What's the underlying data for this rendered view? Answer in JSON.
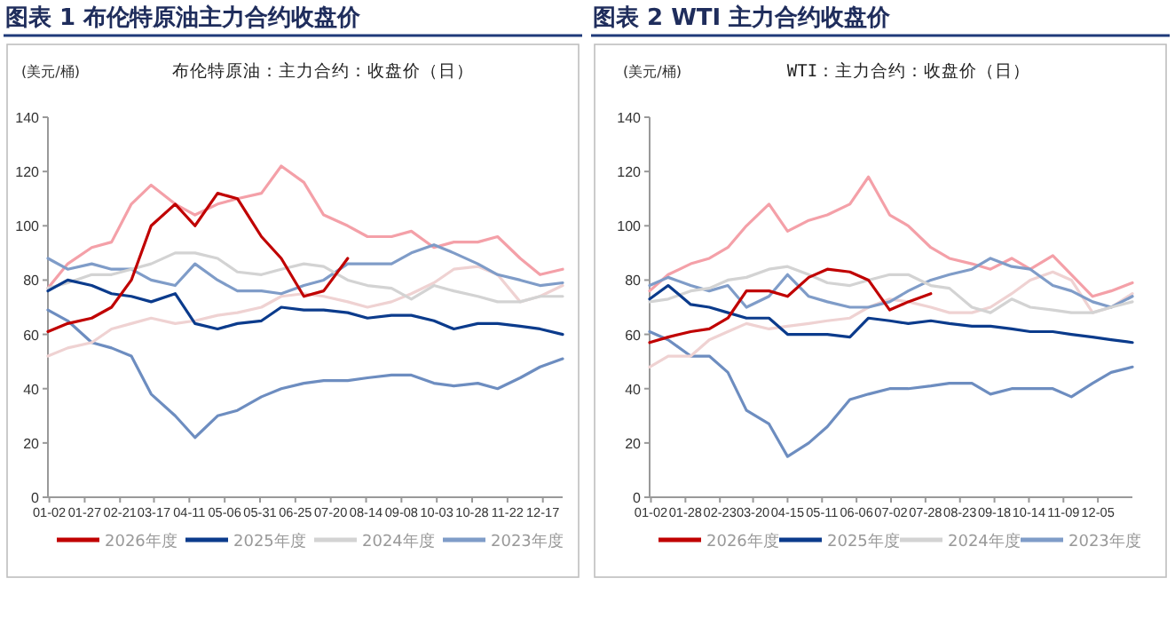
{
  "chart_data": [
    {
      "type": "line",
      "title": "图表 1 布伦特原油主力合约收盘价",
      "subtitle": "布伦特原油：主力合约：收盘价（日）",
      "ylabel": "(美元/桶)",
      "legend": "bottom",
      "line_style": "solid",
      "x": [
        "--01-01",
        "--01-15",
        "--02-01",
        "--02-15",
        "--03-01",
        "--03-15",
        "--04-01",
        "--04-15",
        "--05-01",
        "--05-15",
        "--06-01",
        "--06-15",
        "--07-01",
        "--07-15",
        "--08-01",
        "--08-15",
        "--09-01",
        "--09-15",
        "--10-01",
        "--10-15",
        "--11-01",
        "--11-15",
        "--12-01",
        "--12-15",
        "--12-31"
      ],
      "xlim": [
        "--01-01",
        "--12-31"
      ],
      "xticks": [
        {
          "value": "--01-02",
          "label": "01-02"
        },
        {
          "value": "--01-27",
          "label": "01-27"
        },
        {
          "value": "--02-21",
          "label": "02-21"
        },
        {
          "value": "--03-17",
          "label": "03-17"
        },
        {
          "value": "--04-11",
          "label": "04-11"
        },
        {
          "value": "--05-06",
          "label": "05-06"
        },
        {
          "value": "--05-31",
          "label": "05-31"
        },
        {
          "value": "--06-25",
          "label": "06-25"
        },
        {
          "value": "--07-20",
          "label": "07-20"
        },
        {
          "value": "--08-14",
          "label": "08-14"
        },
        {
          "value": "--09-08",
          "label": "09-08"
        },
        {
          "value": "--10-03",
          "label": "10-03"
        },
        {
          "value": "--10-28",
          "label": "10-28"
        },
        {
          "value": "--11-22",
          "label": "11-22"
        },
        {
          "value": "--12-17",
          "label": "12-17"
        }
      ],
      "ylim": [
        0,
        140
      ],
      "yticks": [
        0,
        20,
        40,
        60,
        80,
        100,
        120,
        140
      ],
      "series": [
        {
          "name": "2026年度",
          "color": "#c00000",
          "values": [
            61,
            64,
            66,
            70,
            80,
            100,
            108,
            100,
            112,
            110,
            96,
            88,
            74,
            76,
            88,
            null,
            null,
            null,
            null,
            null,
            null,
            null,
            null,
            null,
            null
          ]
        },
        {
          "name": "2025年度",
          "color": "#0b3b8c",
          "values": [
            76,
            80,
            78,
            75,
            74,
            72,
            75,
            64,
            62,
            64,
            65,
            70,
            69,
            69,
            68,
            66,
            67,
            67,
            65,
            62,
            64,
            64,
            63,
            62,
            60
          ]
        },
        {
          "name": "2024年度",
          "color": "#d3d3d3",
          "values": [
            77,
            79,
            82,
            82,
            84,
            86,
            90,
            90,
            88,
            83,
            82,
            84,
            86,
            85,
            80,
            78,
            77,
            73,
            78,
            76,
            74,
            72,
            72,
            74,
            74
          ]
        },
        {
          "name": "2023年度",
          "color": "#7f9cc8",
          "values": [
            88,
            84,
            86,
            84,
            84,
            80,
            78,
            86,
            80,
            76,
            76,
            75,
            78,
            80,
            86,
            86,
            86,
            90,
            93,
            90,
            86,
            82,
            80,
            78,
            79
          ]
        },
        {
          "color": "#f4a0a8",
          "values": [
            77,
            86,
            92,
            94,
            108,
            115,
            108,
            104,
            108,
            110,
            112,
            122,
            116,
            104,
            100,
            96,
            96,
            98,
            92,
            94,
            94,
            96,
            88,
            82,
            84
          ]
        },
        {
          "color": "#efd2d2",
          "values": [
            52,
            55,
            57,
            62,
            64,
            66,
            64,
            65,
            67,
            68,
            70,
            74,
            75,
            74,
            72,
            70,
            72,
            75,
            79,
            84,
            85,
            82,
            72,
            74,
            78
          ]
        },
        {
          "color": "#6d8dc0",
          "values": [
            69,
            65,
            57,
            55,
            52,
            38,
            30,
            22,
            30,
            32,
            37,
            40,
            42,
            43,
            43,
            44,
            45,
            45,
            42,
            41,
            42,
            40,
            44,
            48,
            51
          ]
        }
      ]
    },
    {
      "type": "line",
      "title": "图表 2 WTI 主力合约收盘价",
      "subtitle": "WTI：主力合约：收盘价（日）",
      "ylabel": "(美元/桶)",
      "legend": "bottom",
      "line_style": "solid",
      "x": [
        "--01-01",
        "--01-15",
        "--02-01",
        "--02-15",
        "--03-01",
        "--03-15",
        "--04-01",
        "--04-15",
        "--05-01",
        "--05-15",
        "--06-01",
        "--06-15",
        "--07-01",
        "--07-15",
        "--08-01",
        "--08-15",
        "--09-01",
        "--09-15",
        "--10-01",
        "--10-15",
        "--11-01",
        "--11-15",
        "--12-01",
        "--12-15",
        "--12-31"
      ],
      "xlim": [
        "--01-01",
        "--12-31"
      ],
      "xticks": [
        {
          "value": "--01-02",
          "label": "01-02"
        },
        {
          "value": "--01-28",
          "label": "01-28"
        },
        {
          "value": "--02-23",
          "label": "02-23"
        },
        {
          "value": "--03-20",
          "label": "03-20"
        },
        {
          "value": "--04-15",
          "label": "04-15"
        },
        {
          "value": "--05-11",
          "label": "05-11"
        },
        {
          "value": "--06-06",
          "label": "06-06"
        },
        {
          "value": "--07-02",
          "label": "07-02"
        },
        {
          "value": "--07-28",
          "label": "07-28"
        },
        {
          "value": "--08-23",
          "label": "08-23"
        },
        {
          "value": "--09-18",
          "label": "09-18"
        },
        {
          "value": "--10-14",
          "label": "10-14"
        },
        {
          "value": "--11-09",
          "label": "11-09"
        },
        {
          "value": "--12-05",
          "label": "12-05"
        }
      ],
      "ylim": [
        0,
        140
      ],
      "yticks": [
        0,
        20,
        40,
        60,
        80,
        100,
        120,
        140
      ],
      "series": [
        {
          "name": "2026年度",
          "color": "#c00000",
          "values": [
            57,
            59,
            61,
            62,
            66,
            76,
            76,
            74,
            81,
            84,
            83,
            80,
            69,
            72,
            75,
            null,
            null,
            null,
            null,
            null,
            null,
            null,
            null,
            null,
            null
          ]
        },
        {
          "name": "2025年度",
          "color": "#0b3b8c",
          "values": [
            73,
            78,
            71,
            70,
            68,
            66,
            66,
            60,
            60,
            60,
            59,
            66,
            65,
            64,
            65,
            64,
            63,
            63,
            62,
            61,
            61,
            60,
            59,
            58,
            57
          ]
        },
        {
          "name": "2024年度",
          "color": "#d3d3d3",
          "values": [
            72,
            73,
            76,
            77,
            80,
            81,
            84,
            85,
            82,
            79,
            78,
            80,
            82,
            82,
            78,
            77,
            70,
            68,
            73,
            70,
            69,
            68,
            68,
            70,
            72
          ]
        },
        {
          "name": "2023年度",
          "color": "#7f9cc8",
          "values": [
            78,
            81,
            78,
            76,
            78,
            70,
            74,
            82,
            74,
            72,
            70,
            70,
            72,
            76,
            80,
            82,
            84,
            88,
            85,
            84,
            78,
            76,
            72,
            70,
            74
          ]
        },
        {
          "color": "#f4a0a8",
          "values": [
            76,
            82,
            86,
            88,
            92,
            100,
            108,
            98,
            102,
            104,
            108,
            118,
            104,
            100,
            92,
            88,
            86,
            84,
            88,
            84,
            89,
            82,
            74,
            76,
            79
          ]
        },
        {
          "color": "#efd2d2",
          "values": [
            48,
            52,
            52,
            58,
            61,
            64,
            62,
            63,
            64,
            65,
            66,
            70,
            73,
            72,
            70,
            68,
            68,
            70,
            75,
            80,
            83,
            80,
            68,
            70,
            75
          ]
        },
        {
          "color": "#6d8dc0",
          "values": [
            61,
            58,
            52,
            52,
            46,
            32,
            27,
            15,
            20,
            26,
            36,
            38,
            40,
            40,
            41,
            42,
            42,
            38,
            40,
            40,
            40,
            37,
            42,
            46,
            48
          ]
        }
      ]
    }
  ]
}
